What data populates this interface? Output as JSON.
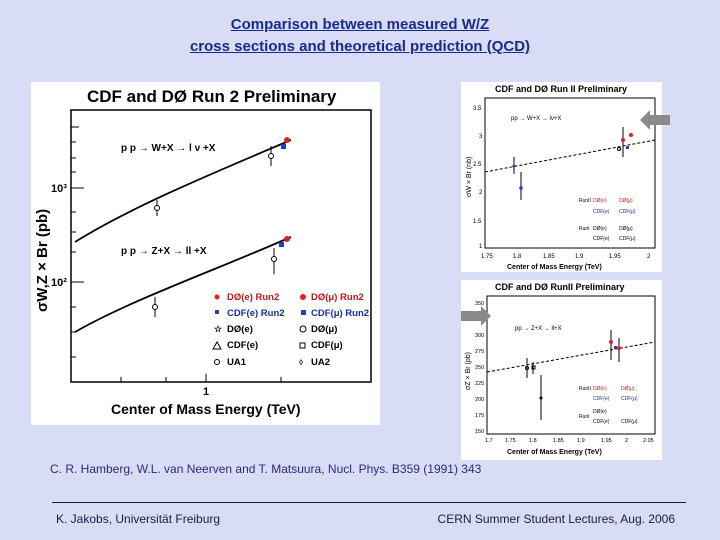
{
  "title": {
    "line1": "Comparison between measured W/Z",
    "line2": "cross sections and theoretical prediction (QCD)"
  },
  "main_plot": {
    "header": "CDF and DØ Run 2 Preliminary",
    "ylabel": "σW,Z × Br (pb)",
    "xlabel": "Center of Mass Energy (TeV)",
    "tick_y_upper": "10³",
    "tick_y_lower": "10²",
    "tick_x": "1",
    "process_w": "p p → W+X → l ν +X",
    "process_z": "p p → Z+X → ll +X",
    "legend": [
      "DØ(e) Run2",
      "DØ(μ) Run2",
      "CDF(e) Run2",
      "CDF(μ) Run2",
      "DØ(e)",
      "DØ(μ)",
      "CDF(e)",
      "CDF(μ)",
      "UA1",
      "UA2"
    ]
  },
  "top_right_plot": {
    "header": "CDF and DØ Run II Preliminary",
    "process": "pp → W+X → lν+X",
    "ylabel": "σW × Br (nb)",
    "xlabel": "Center of Mass Energy (TeV)",
    "yticks": [
      "3.5",
      "3",
      "2.5",
      "2",
      "1.5",
      "1"
    ],
    "xticks": [
      "1.75",
      "1.8",
      "1.85",
      "1.9",
      "1.95",
      "2"
    ],
    "legend": [
      "DØ(e)",
      "DØ(μ)",
      "CDF(e)",
      "CDF(μ)",
      "DØ(e)",
      "DØ(μ)",
      "CDF(e)",
      "CDF(μ)"
    ],
    "legend_run_labels": [
      "RunII",
      "RunI"
    ]
  },
  "bottom_right_plot": {
    "header": "CDF and DØ RunII Preliminary",
    "process": "pp → Z+X → ll+X",
    "ylabel": "σZ × Br (pb)",
    "xlabel": "Center of Mass Energy (TeV)",
    "yticks": [
      "350",
      "325",
      "300",
      "275",
      "250",
      "225",
      "200",
      "175",
      "150"
    ],
    "xticks": [
      "1.7",
      "1.75",
      "1.8",
      "1.85",
      "1.9",
      "1.95",
      "2",
      "2.05"
    ],
    "legend": [
      "DØ(e)",
      "DØ(μ)",
      "CDF(e)",
      "CDF(μ)",
      "DØ(e)",
      "CDF(e)",
      "CDF(μ)"
    ],
    "legend_run_labels": [
      "RunII",
      "RunI"
    ]
  },
  "reference": "C. R. Hamberg, W.L. van Neerven and T. Matsuura, Nucl. Phys. B359 (1991) 343",
  "footer": {
    "left": "K. Jakobs, Universität Freiburg",
    "right": "CERN Summer Student Lectures, Aug. 2006"
  },
  "colors": {
    "title": "#1a2a8a",
    "background": "#d9dcf5",
    "d0_run2": "#e02020",
    "cdf_run2": "#2040c0"
  }
}
